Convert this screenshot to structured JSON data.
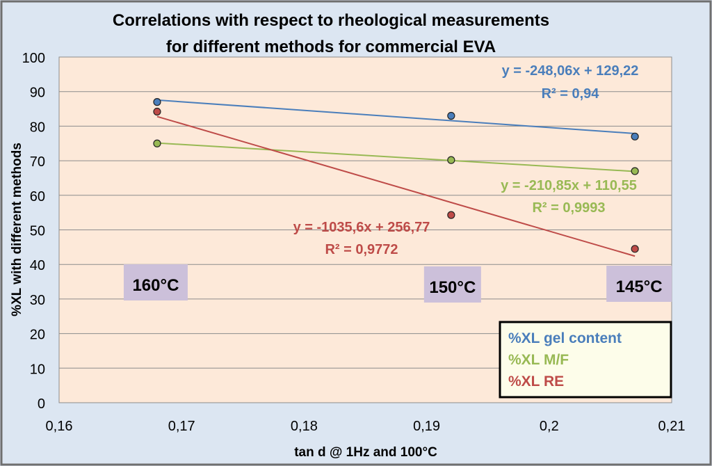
{
  "chart_data": {
    "type": "scatter",
    "title_line1": "Correlations with respect to rheological measurements",
    "title_line2": "for different methods for commercial EVA",
    "xlabel": "tan d @ 1Hz and 100°C",
    "ylabel": "%XL with different methods",
    "xlim": [
      0.16,
      0.21
    ],
    "ylim": [
      0,
      100
    ],
    "x_ticks": [
      0.16,
      0.17,
      0.18,
      0.19,
      0.2,
      0.21
    ],
    "x_tick_labels": [
      "0,16",
      "0,17",
      "0,18",
      "0,19",
      "0,2",
      "0,21"
    ],
    "y_ticks": [
      0,
      10,
      20,
      30,
      40,
      50,
      60,
      70,
      80,
      90,
      100
    ],
    "y_tick_labels": [
      "0",
      "10",
      "20",
      "30",
      "40",
      "50",
      "60",
      "70",
      "80",
      "90",
      "100"
    ],
    "grid": true,
    "legend_position": "bottom-right",
    "series": [
      {
        "name": "%XL gel content",
        "color": "#4a7ebb",
        "x": [
          0.168,
          0.192,
          0.207
        ],
        "y": [
          87,
          83,
          77
        ],
        "trendline": {
          "slope": -248.06,
          "intercept": 129.22
        },
        "equation": "y = -248,06x + 129,22",
        "r2": "R² = 0,94"
      },
      {
        "name": "%XL M/F",
        "color": "#98b954",
        "x": [
          0.168,
          0.192,
          0.207
        ],
        "y": [
          75,
          70.2,
          67
        ],
        "trendline": {
          "slope": -210.85,
          "intercept": 110.55
        },
        "equation": "y = -210,85x + 110,55",
        "r2": "R² = 0,9993"
      },
      {
        "name": "%XL RE",
        "color": "#be4b48",
        "x": [
          0.168,
          0.192,
          0.207
        ],
        "y": [
          84.2,
          54.3,
          44.5
        ],
        "trendline": {
          "slope": -1035.6,
          "intercept": 256.77
        },
        "equation": "y = -1035,6x + 256,77",
        "r2": "R² = 0,9772"
      }
    ],
    "temperature_labels": [
      {
        "x": 0.168,
        "text": "160°C"
      },
      {
        "x": 0.192,
        "text": "150°C"
      },
      {
        "x": 0.207,
        "text": "145°C"
      }
    ]
  },
  "colors": {
    "background": "#dce6f2",
    "plot_area": "#fde9d9",
    "label_box": "#ccc0da",
    "legend_bg": "#fdfdea"
  }
}
